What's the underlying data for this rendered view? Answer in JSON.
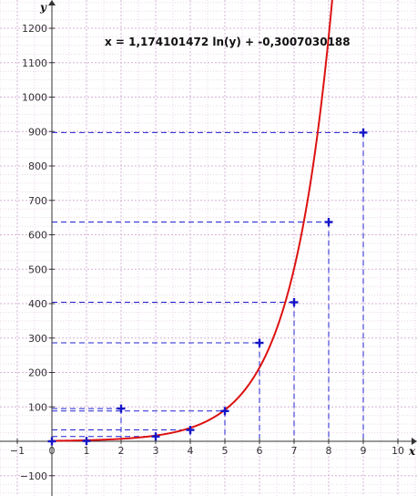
{
  "chart_data": {
    "type": "scatter",
    "equation": "x = 1,174101472 ln(y) + -0,3007030188",
    "xlabel": "x",
    "ylabel": "y",
    "xlim": [
      -1.5,
      10.5
    ],
    "ylim": [
      -150,
      1270
    ],
    "x_ticks": [
      -1,
      0,
      1,
      2,
      3,
      4,
      5,
      6,
      7,
      8,
      9,
      10
    ],
    "y_ticks": [
      -100,
      0,
      100,
      200,
      300,
      400,
      500,
      600,
      700,
      800,
      900,
      1000,
      1100,
      1200
    ],
    "grid": true,
    "points": [
      {
        "x": 0,
        "y": 0
      },
      {
        "x": 1,
        "y": 1
      },
      {
        "x": 2,
        "y": 95
      },
      {
        "x": 3,
        "y": 14
      },
      {
        "x": 4,
        "y": 33
      },
      {
        "x": 5,
        "y": 88
      },
      {
        "x": 6,
        "y": 286
      },
      {
        "x": 7,
        "y": 404
      },
      {
        "x": 8,
        "y": 637
      },
      {
        "x": 9,
        "y": 897
      }
    ],
    "fit": {
      "a": 1.174101472,
      "b": -0.3007030188
    },
    "colors": {
      "points": "#1515c8",
      "guides": "#2020d0",
      "curve": "#dd1111",
      "grid": "#d6b4d6"
    }
  }
}
